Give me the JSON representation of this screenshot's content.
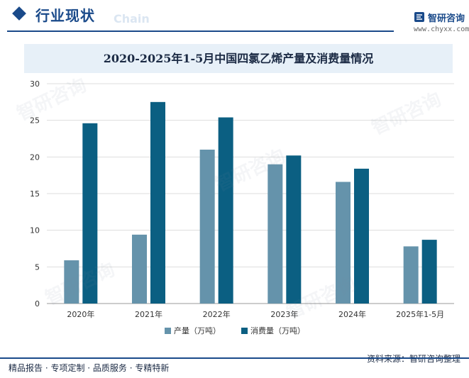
{
  "header": {
    "section_title": "行业现状",
    "section_title_en": "Chain",
    "brand_name": "智研咨询",
    "brand_url": "www.chyxx.com"
  },
  "watermark": {
    "text": "智研咨询"
  },
  "colors": {
    "production": "#6593ab",
    "consumption": "#0b5f82",
    "accent": "#1a4a8a"
  },
  "chart_data": {
    "type": "bar",
    "title": "2020-2025年1-5月中国四氯乙烯产量及消费量情况",
    "categories": [
      "2020年",
      "2021年",
      "2022年",
      "2023年",
      "2024年",
      "2025年1-5月"
    ],
    "series": [
      {
        "name": "产量（万吨）",
        "values": [
          5.9,
          9.4,
          21.0,
          19.0,
          16.6,
          7.8
        ]
      },
      {
        "name": "消费量（万吨）",
        "values": [
          24.6,
          27.5,
          25.4,
          20.2,
          18.4,
          8.7
        ]
      }
    ],
    "yticks": [
      "0",
      "5",
      "10",
      "15",
      "20",
      "25",
      "30"
    ],
    "ylim": [
      0,
      30
    ],
    "xlabel": "",
    "ylabel": "",
    "grid": true,
    "legend": "bottom-center"
  },
  "footer": {
    "left": "精品报告 · 专项定制 · 品质服务 · 专精特新",
    "source": "资料来源：智研咨询整理"
  }
}
